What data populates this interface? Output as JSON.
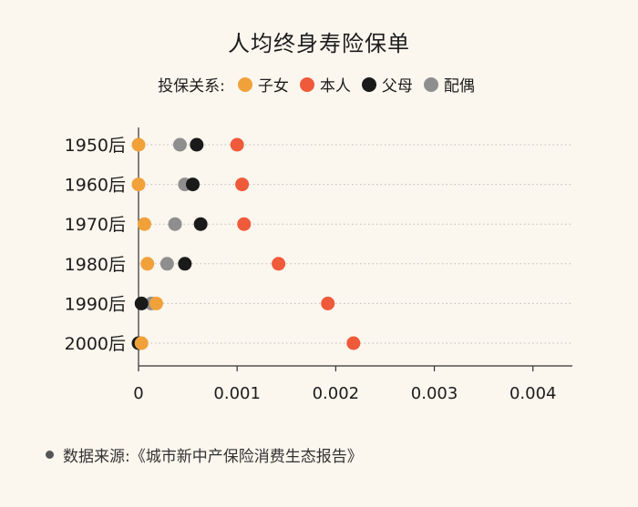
{
  "chart_data": {
    "type": "scatter",
    "title": "人均终身寿险保单",
    "legend_title": "投保关系:",
    "legend_position": "top",
    "categories": [
      "1950后",
      "1960后",
      "1970后",
      "1980后",
      "1990后",
      "2000后"
    ],
    "x_ticks": [
      "0",
      "0.001",
      "0.002",
      "0.003",
      "0.004"
    ],
    "xlim": [
      0,
      0.0044
    ],
    "grid": "horizontal dotted",
    "series": [
      {
        "name": "子女",
        "color": "#f0a13a",
        "values": [
          0.0,
          0.0,
          6e-05,
          9e-05,
          0.00018,
          3e-05
        ]
      },
      {
        "name": "本人",
        "color": "#ef5a3a",
        "values": [
          0.001,
          0.00105,
          0.00107,
          0.00142,
          0.00192,
          0.00218
        ]
      },
      {
        "name": "父母",
        "color": "#1a1a1a",
        "values": [
          0.00059,
          0.00055,
          0.00063,
          0.00047,
          3e-05,
          0.0
        ]
      },
      {
        "name": "配偶",
        "color": "#8e8e8e",
        "values": [
          0.00042,
          0.00047,
          0.00037,
          0.00029,
          0.00013,
          null
        ]
      }
    ]
  },
  "source_text": "数据来源:《城市新中产保险消费生态报告》"
}
